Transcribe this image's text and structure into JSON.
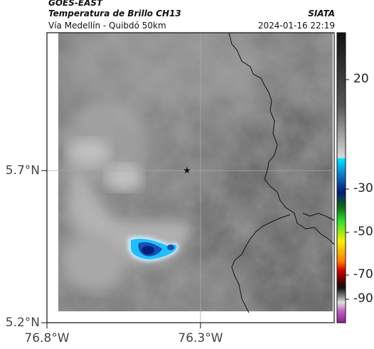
{
  "header": {
    "satellite": "GOES-EAST",
    "product": "Temperatura de Brillo CH13",
    "route": "Vía Medellín - Quibdó 50km",
    "organization": "SIATA",
    "datetime": "2024-01-16 22:19"
  },
  "axes": {
    "y_ticks": [
      "5.7°N",
      "5.2°N"
    ],
    "x_ticks": [
      "76.8°W",
      "76.3°W"
    ]
  },
  "colorbar": {
    "labels": [
      "20",
      "-30",
      "-50",
      "-70",
      "-90"
    ]
  },
  "map": {
    "marker": "star-icon",
    "cold_cloud_color": "#1450b4"
  }
}
